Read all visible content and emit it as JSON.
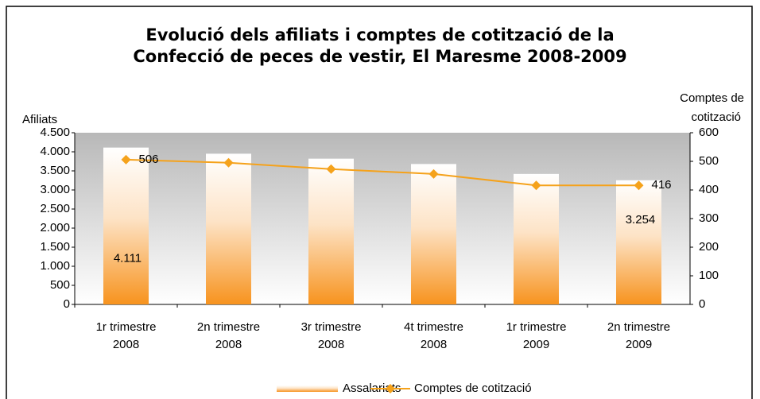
{
  "chart_data": {
    "type": "bar-line",
    "title": [
      "Evolució dels afiliats i comptes de cotització de la",
      "Confecció de peces de vestir, El Maresme 2008-2009"
    ],
    "y_label": "Afiliats",
    "y2_label": [
      "Comptes de",
      "cotització"
    ],
    "categories": [
      [
        "1r trimestre",
        "2008"
      ],
      [
        "2n trimestre",
        "2008"
      ],
      [
        "3r trimestre",
        "2008"
      ],
      [
        "4t trimestre",
        "2008"
      ],
      [
        "1r trimestre",
        "2009"
      ],
      [
        "2n trimestre",
        "2009"
      ]
    ],
    "series": [
      {
        "name": "Assalariats",
        "type": "bar",
        "color": "#f7931e",
        "values": [
          4111,
          3950,
          3820,
          3680,
          3420,
          3254
        ],
        "value_labels": [
          "4.111",
          null,
          null,
          null,
          null,
          "3.254"
        ]
      },
      {
        "name": "Comptes de cotització",
        "type": "line",
        "axis": "y2",
        "color": "#f5a21b",
        "values": [
          506,
          495,
          473,
          456,
          416,
          416
        ],
        "value_labels": [
          "506",
          null,
          null,
          null,
          null,
          "416"
        ]
      }
    ],
    "ylim": [
      0,
      4500
    ],
    "yticks": [
      0,
      500,
      {
        "value": 1000,
        "label": "1.000"
      },
      {
        "value": 1500,
        "label": "1.500"
      },
      {
        "value": 2000,
        "label": "2.000"
      },
      {
        "value": 2500,
        "label": "2.500"
      },
      {
        "value": 3000,
        "label": "3.000"
      },
      {
        "value": 3500,
        "label": "3.500"
      },
      {
        "value": 4000,
        "label": "4.000"
      },
      {
        "value": 4500,
        "label": "4.500"
      }
    ],
    "y2lim": [
      0,
      600
    ],
    "y2ticks": [
      0,
      100,
      200,
      300,
      400,
      500,
      600
    ],
    "legend": "bottom"
  }
}
